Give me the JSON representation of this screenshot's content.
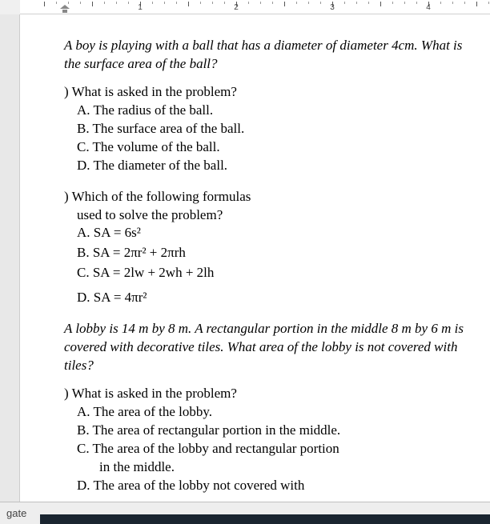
{
  "ruler": {
    "labels": [
      "1",
      "2",
      "3",
      "4"
    ]
  },
  "problem1": {
    "text": "A boy is playing with a ball that has a diameter of diameter 4cm. What is the surface area of the ball?",
    "q1": {
      "stem": ") What is asked in the problem?",
      "a": "A. The radius of the ball.",
      "b": "B. The surface area of the ball.",
      "c": "C. The volume of the ball.",
      "d": "D. The diameter of the ball."
    },
    "q2": {
      "stem": ") Which of the following formulas",
      "stem2": "used to solve the problem?",
      "a": "A. SA = 6s²",
      "b": "B. SA = 2πr² + 2πrh",
      "c": "C. SA = 2lw + 2wh + 2lh",
      "d": "D. SA = 4πr²"
    }
  },
  "problem2": {
    "text": "A lobby is 14 m by 8 m. A rectangular portion in the middle 8 m by 6 m is covered with decorative tiles. What area of the lobby is not covered with tiles?",
    "q1": {
      "stem": ") What is asked in the problem?",
      "a": "A. The area of the lobby.",
      "b": "B. The area of rectangular portion in the middle.",
      "c": "C. The area of the lobby and rectangular portion",
      "c2": "in the middle.",
      "d": "D. The area of the lobby not covered with"
    }
  },
  "statusbar": {
    "item1": "gate"
  },
  "colors": {
    "page_bg": "#ffffff",
    "gutter_bg": "#e8e8e8",
    "status_bg": "#eeeeee",
    "task_bg": "#1a2530",
    "text": "#000000"
  }
}
